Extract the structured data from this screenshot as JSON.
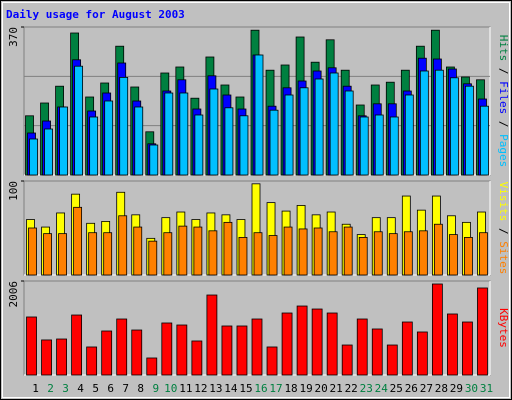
{
  "chart_data": [
    {
      "type": "bar",
      "title": "Daily usage for August 2003",
      "ylim": [
        0,
        370
      ],
      "yticks": [
        370
      ],
      "series": [
        {
          "name": "Hits",
          "color": "#008040",
          "values": [
            148,
            180,
            222,
            355,
            195,
            230,
            322,
            220,
            108,
            255,
            270,
            192,
            295,
            225,
            195,
            362,
            262,
            275,
            345,
            282,
            338,
            262,
            175,
            225,
            232,
            262,
            322,
            362,
            270,
            245,
            238
          ]
        },
        {
          "name": "Files",
          "color": "#0000ff",
          "values": [
            105,
            135,
            170,
            288,
            160,
            205,
            280,
            185,
            78,
            210,
            238,
            165,
            248,
            200,
            165,
            300,
            172,
            218,
            235,
            260,
            268,
            222,
            148,
            178,
            178,
            210,
            292,
            290,
            265,
            228,
            190
          ]
        },
        {
          "name": "Pages",
          "color": "#00c0ff",
          "values": [
            90,
            115,
            170,
            272,
            145,
            185,
            244,
            170,
            75,
            205,
            205,
            150,
            215,
            168,
            148,
            300,
            162,
            200,
            218,
            240,
            255,
            210,
            145,
            150,
            145,
            200,
            260,
            262,
            243,
            222,
            172
          ]
        }
      ]
    },
    {
      "type": "bar",
      "ylim": [
        0,
        100
      ],
      "yticks": [
        100
      ],
      "series": [
        {
          "name": "Visits",
          "color": "#ffff00",
          "values": [
            59,
            51,
            66,
            86,
            55,
            57,
            88,
            64,
            39,
            61,
            67,
            59,
            66,
            64,
            59,
            97,
            77,
            68,
            74,
            64,
            67,
            54,
            43,
            61,
            61,
            84,
            69,
            84,
            63,
            56,
            67
          ]
        },
        {
          "name": "Sites",
          "color": "#ff8000",
          "values": [
            50,
            44,
            44,
            72,
            45,
            45,
            63,
            51,
            36,
            45,
            52,
            51,
            47,
            56,
            40,
            45,
            42,
            51,
            49,
            50,
            46,
            51,
            40,
            46,
            44,
            46,
            47,
            54,
            43,
            40,
            45
          ]
        }
      ]
    },
    {
      "type": "bar",
      "ylim": [
        0,
        2006
      ],
      "yticks": [
        2006
      ],
      "categories": [
        "1",
        "2",
        "3",
        "4",
        "5",
        "6",
        "7",
        "8",
        "9",
        "10",
        "11",
        "12",
        "13",
        "14",
        "15",
        "16",
        "17",
        "18",
        "19",
        "20",
        "21",
        "22",
        "23",
        "24",
        "25",
        "26",
        "27",
        "28",
        "29",
        "30",
        "31"
      ],
      "category_colors": [
        "#000000",
        "#008040",
        "#008040",
        "#000000",
        "#000000",
        "#000000",
        "#000000",
        "#000000",
        "#008040",
        "#008040",
        "#000000",
        "#000000",
        "#000000",
        "#000000",
        "#000000",
        "#008040",
        "#008040",
        "#000000",
        "#000000",
        "#000000",
        "#000000",
        "#000000",
        "#008040",
        "#008040",
        "#000000",
        "#000000",
        "#000000",
        "#000000",
        "#000000",
        "#008040",
        "#008040"
      ],
      "series": [
        {
          "name": "KBytes",
          "color": "#ff0000",
          "values": [
            1238,
            748,
            768,
            1280,
            598,
            939,
            1195,
            960,
            363,
            1110,
            1067,
            726,
            1707,
            1046,
            1046,
            1195,
            598,
            1323,
            1472,
            1408,
            1323,
            640,
            1195,
            982,
            640,
            1131,
            918,
            1942,
            1302,
            1131,
            1857
          ]
        }
      ]
    }
  ]
}
